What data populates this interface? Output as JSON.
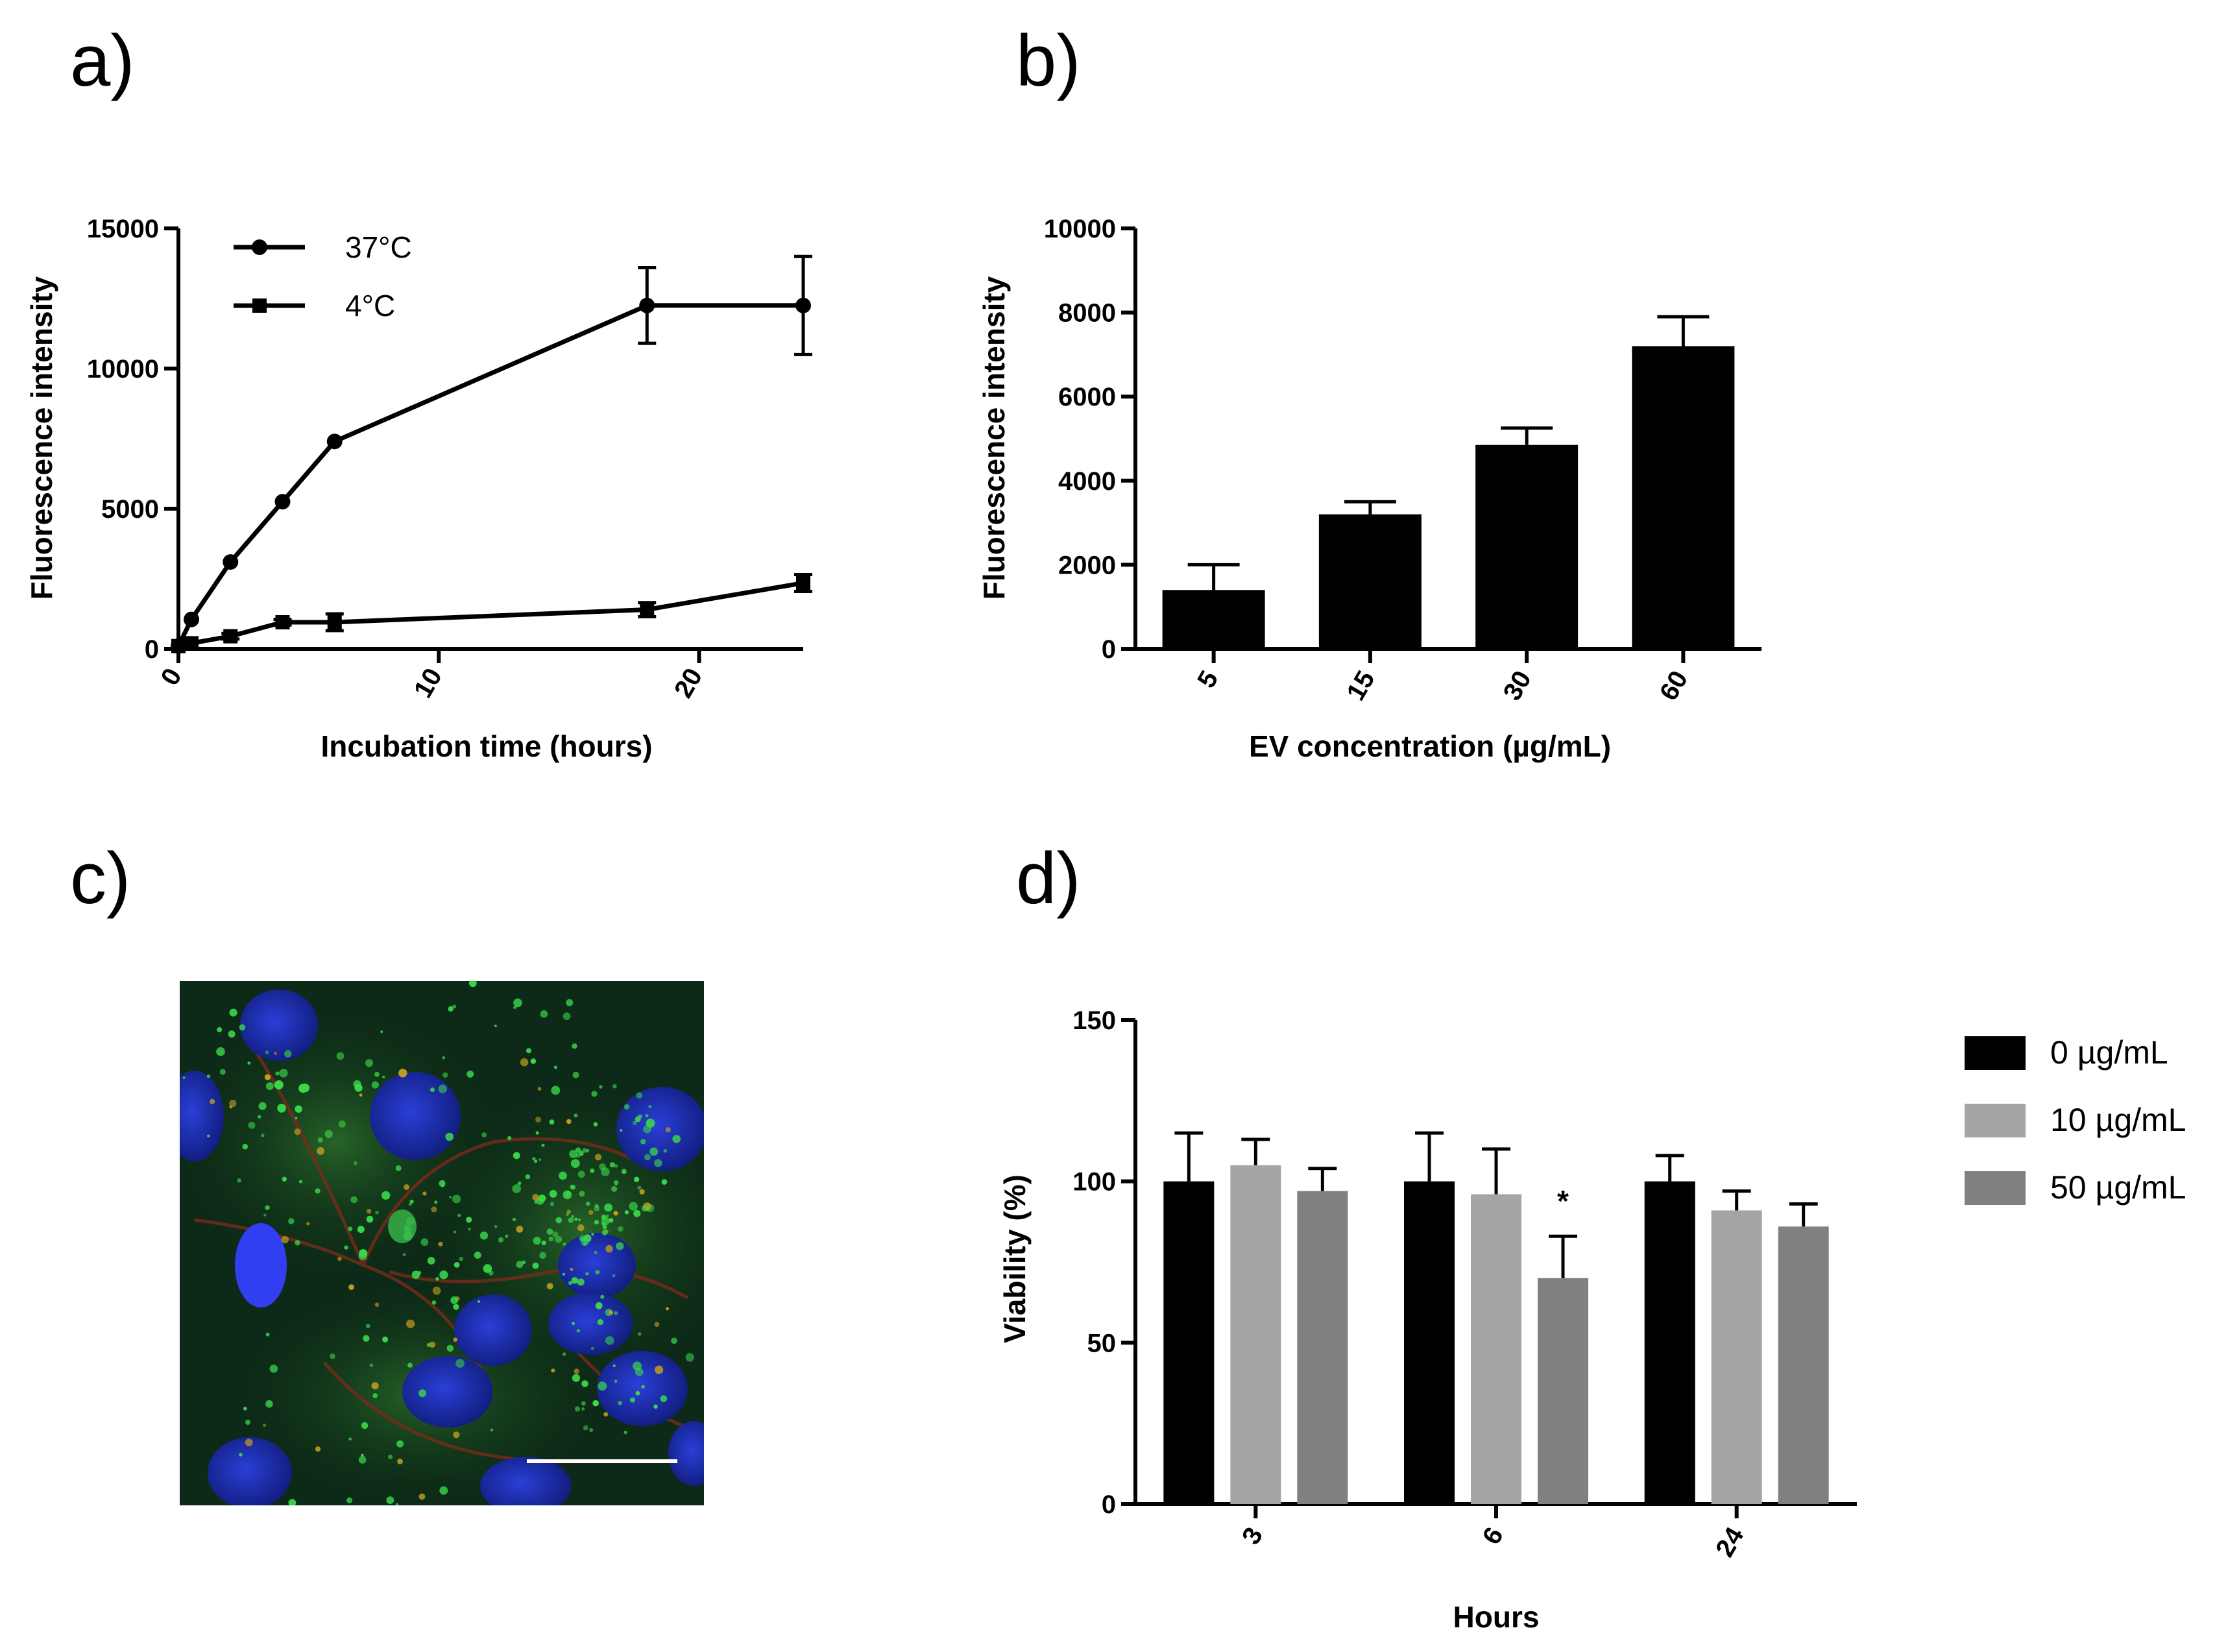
{
  "panels": {
    "a": "a)",
    "b": "b)",
    "c": "c)",
    "d": "d)"
  },
  "colors": {
    "black": "#000000",
    "light_gray": "#a5a5a8",
    "dark_gray": "#808080",
    "micro_bg": "#0a2a14",
    "nuclei": "#1a2fb8",
    "vesicles": "#2ecc40",
    "membrane": "#8a2a1a",
    "scale_bar": "#ffffff"
  },
  "micrograph": {
    "description_icon": "fluorescence-micrograph-icon"
  },
  "chart_data": [
    {
      "id": "a",
      "type": "line",
      "title": "",
      "xlabel": "Incubation time (hours)",
      "ylabel": "Fluorescence intensity",
      "xlim": [
        0,
        24
      ],
      "ylim": [
        0,
        15000
      ],
      "x_ticks": [
        "0",
        "10",
        "20"
      ],
      "x_tick_values": [
        0,
        10,
        20
      ],
      "y_ticks": [
        "0",
        "5000",
        "10000",
        "15000"
      ],
      "y_tick_values": [
        0,
        5000,
        10000,
        15000
      ],
      "series": [
        {
          "name": "37°C",
          "marker": "circle",
          "x": [
            0,
            0.5,
            2,
            4,
            6,
            18,
            24
          ],
          "y": [
            100,
            1050,
            3100,
            5250,
            7400,
            12250,
            12250
          ],
          "err": [
            0,
            0,
            0,
            0,
            0,
            1350,
            1750
          ]
        },
        {
          "name": "4°C",
          "marker": "square",
          "x": [
            0,
            0.5,
            2,
            4,
            6,
            18,
            24
          ],
          "y": [
            100,
            200,
            450,
            950,
            950,
            1400,
            2350
          ],
          "err": [
            0,
            0,
            100,
            100,
            300,
            250,
            300
          ]
        }
      ],
      "legend": "top-left"
    },
    {
      "id": "b",
      "type": "bar",
      "title": "",
      "xlabel": "EV concentration (µg/mL)",
      "ylabel": "Fluorescence intensity",
      "categories": [
        "5",
        "15",
        "30",
        "60"
      ],
      "values": [
        1400,
        3200,
        4850,
        7200
      ],
      "err": [
        600,
        300,
        400,
        700
      ],
      "ylim": [
        0,
        10000
      ],
      "y_ticks": [
        "0",
        "2000",
        "4000",
        "6000",
        "8000",
        "10000"
      ],
      "y_tick_values": [
        0,
        2000,
        4000,
        6000,
        8000,
        10000
      ]
    },
    {
      "id": "d",
      "type": "bar",
      "title": "",
      "xlabel": "Hours",
      "ylabel": "Viability (%)",
      "categories": [
        "3",
        "6",
        "24"
      ],
      "series": [
        {
          "name": "0 µg/mL",
          "color": "#000000",
          "values": [
            100,
            100,
            100
          ],
          "err": [
            15,
            15,
            8
          ]
        },
        {
          "name": "10 µg/mL",
          "color": "#a5a5a8",
          "values": [
            105,
            96,
            91
          ],
          "err": [
            8,
            14,
            6
          ]
        },
        {
          "name": "50 µg/mL",
          "color": "#808080",
          "values": [
            97,
            70,
            86
          ],
          "err": [
            7,
            13,
            7
          ]
        }
      ],
      "ylim": [
        0,
        150
      ],
      "y_ticks": [
        "0",
        "50",
        "100",
        "150"
      ],
      "y_tick_values": [
        0,
        50,
        100,
        150
      ],
      "annotations": [
        {
          "text": "*",
          "category": "6",
          "series": "50 µg/mL"
        }
      ],
      "legend": "right"
    }
  ]
}
